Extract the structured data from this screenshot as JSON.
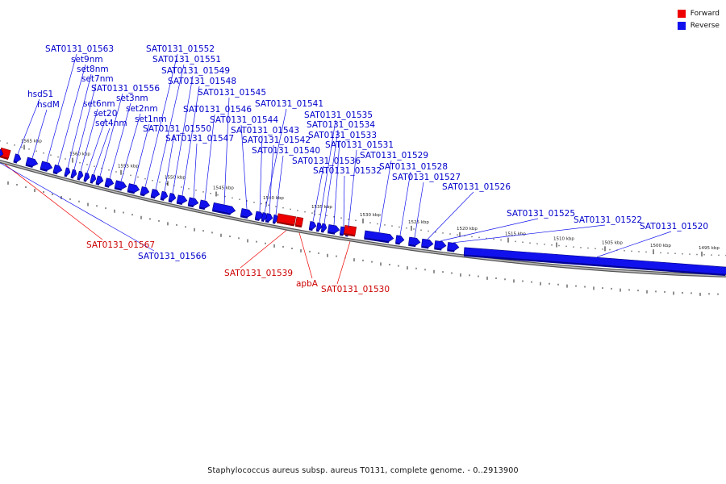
{
  "colors": {
    "forward": "#ee0000",
    "reverse": "#1111ee",
    "backbone": "#888888"
  },
  "legend": [
    {
      "label": "Forward",
      "color": "#ee0000"
    },
    {
      "label": "Reverse",
      "color": "#1111ee"
    }
  ],
  "caption": "Staphylococcus aureus subsp. aureus T0131, complete genome. - 0..2913900",
  "ticks": [
    "1565 kbp",
    "1560 kbp",
    "1555 kbp",
    "1550 kbp",
    "1545 kbp",
    "1540 kbp",
    "1535 kbp",
    "1530 kbp",
    "1525 kbp",
    "1520 kbp",
    "1515 kbp",
    "1510 kbp",
    "1505 kbp",
    "1500 kbp",
    "1495 kbp"
  ],
  "genes": [
    {
      "name": "hsdS1",
      "strand": "reverse"
    },
    {
      "name": "hsdM",
      "strand": "reverse"
    },
    {
      "name": "SAT0131_01563",
      "strand": "reverse"
    },
    {
      "name": "set9nm",
      "strand": "reverse"
    },
    {
      "name": "set8nm",
      "strand": "reverse"
    },
    {
      "name": "set7nm",
      "strand": "reverse"
    },
    {
      "name": "set6nm",
      "strand": "reverse"
    },
    {
      "name": "set20",
      "strand": "reverse"
    },
    {
      "name": "set4nm",
      "strand": "reverse"
    },
    {
      "name": "SAT0131_01556",
      "strand": "reverse"
    },
    {
      "name": "set3nm",
      "strand": "reverse"
    },
    {
      "name": "set2nm",
      "strand": "reverse"
    },
    {
      "name": "set1nm",
      "strand": "reverse"
    },
    {
      "name": "SAT0131_01552",
      "strand": "reverse"
    },
    {
      "name": "SAT0131_01551",
      "strand": "reverse"
    },
    {
      "name": "SAT0131_01550",
      "strand": "reverse"
    },
    {
      "name": "SAT0131_01549",
      "strand": "reverse"
    },
    {
      "name": "SAT0131_01548",
      "strand": "reverse"
    },
    {
      "name": "SAT0131_01547",
      "strand": "reverse"
    },
    {
      "name": "SAT0131_01546",
      "strand": "reverse"
    },
    {
      "name": "SAT0131_01545",
      "strand": "reverse"
    },
    {
      "name": "SAT0131_01544",
      "strand": "reverse"
    },
    {
      "name": "SAT0131_01543",
      "strand": "reverse"
    },
    {
      "name": "SAT0131_01542",
      "strand": "reverse"
    },
    {
      "name": "SAT0131_01541",
      "strand": "reverse"
    },
    {
      "name": "SAT0131_01540",
      "strand": "reverse"
    },
    {
      "name": "SAT0131_01539",
      "strand": "forward"
    },
    {
      "name": "apbA",
      "strand": "forward"
    },
    {
      "name": "SAT0131_01536",
      "strand": "reverse"
    },
    {
      "name": "SAT0131_01535",
      "strand": "reverse"
    },
    {
      "name": "SAT0131_01534",
      "strand": "reverse"
    },
    {
      "name": "SAT0131_01533",
      "strand": "reverse"
    },
    {
      "name": "SAT0131_01532",
      "strand": "reverse"
    },
    {
      "name": "SAT0131_01531",
      "strand": "reverse"
    },
    {
      "name": "SAT0131_01530",
      "strand": "forward"
    },
    {
      "name": "SAT0131_01529",
      "strand": "reverse"
    },
    {
      "name": "SAT0131_01528",
      "strand": "reverse"
    },
    {
      "name": "SAT0131_01527",
      "strand": "reverse"
    },
    {
      "name": "SAT0131_01526",
      "strand": "reverse"
    },
    {
      "name": "SAT0131_01525",
      "strand": "reverse"
    },
    {
      "name": "SAT0131_01522",
      "strand": "reverse"
    },
    {
      "name": "SAT0131_01520",
      "strand": "reverse"
    },
    {
      "name": "SAT0131_01567",
      "strand": "forward"
    },
    {
      "name": "SAT0131_01566",
      "strand": "reverse"
    }
  ]
}
